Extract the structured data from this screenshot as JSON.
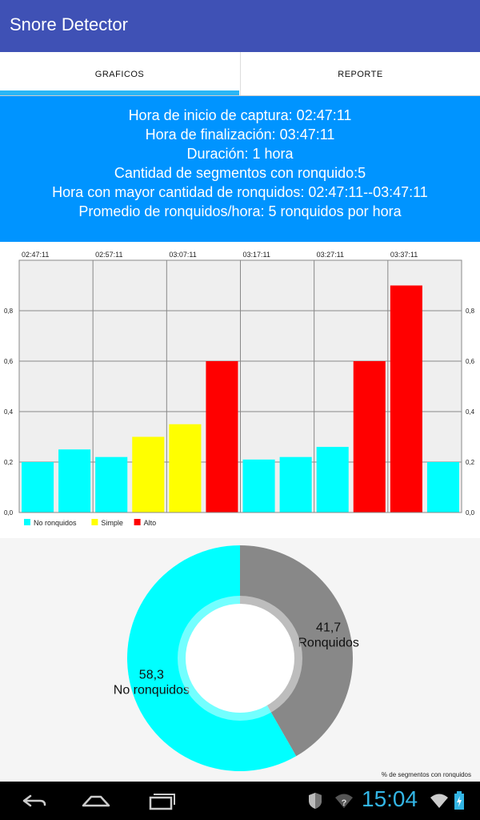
{
  "app": {
    "title": "Snore Detector"
  },
  "tabs": [
    {
      "label": "GRAFICOS",
      "selected": true
    },
    {
      "label": "REPORTE",
      "selected": false
    }
  ],
  "summary": {
    "line1": "Hora de inicio de captura: 02:47:11",
    "line2": "Hora de finalización: 03:47:11",
    "line3": "Duración: 1 hora",
    "line4": "Cantidad de segmentos con ronquido:5",
    "line5": "Hora con mayor cantidad de ronquidos: 02:47:11--03:47:11",
    "line6": "Promedio de ronquidos/hora: 5 ronquidos por hora"
  },
  "colors": {
    "accent": "#0094ff",
    "appbar": "#3f51b5",
    "no_ronquidos": "#00ffff",
    "simple": "#ffff00",
    "alto": "#ff0000",
    "ronquidos": "#888888"
  },
  "chart_data": [
    {
      "type": "bar",
      "time_labels": [
        "02:47:11",
        "02:57:11",
        "03:07:11",
        "03:17:11",
        "03:27:11",
        "03:37:11"
      ],
      "y_ticks": [
        "0,0",
        "0,2",
        "0,4",
        "0,6",
        "0,8"
      ],
      "ylim": [
        0,
        1.0
      ],
      "values": [
        0.2,
        0.25,
        0.22,
        0.3,
        0.35,
        0.6,
        0.21,
        0.22,
        0.26,
        0.6,
        0.9,
        0.2
      ],
      "categories_per_bar": [
        "no",
        "no",
        "no",
        "simple",
        "simple",
        "alto",
        "no",
        "no",
        "no",
        "alto",
        "alto",
        "no"
      ],
      "legend": [
        {
          "key": "no",
          "label": "No ronquidos"
        },
        {
          "key": "simple",
          "label": "Simple"
        },
        {
          "key": "alto",
          "label": "Alto"
        }
      ],
      "grid": true
    },
    {
      "type": "pie",
      "slices": [
        {
          "key": "ronquidos",
          "value": 41.7,
          "value_label": "41,7",
          "label": "Ronquidos"
        },
        {
          "key": "no_ronquidos",
          "value": 58.3,
          "value_label": "58,3",
          "label": "No ronquidos"
        }
      ],
      "description": "% de segmentos con ronquidos"
    }
  ],
  "status_bar": {
    "time": "15:04"
  }
}
